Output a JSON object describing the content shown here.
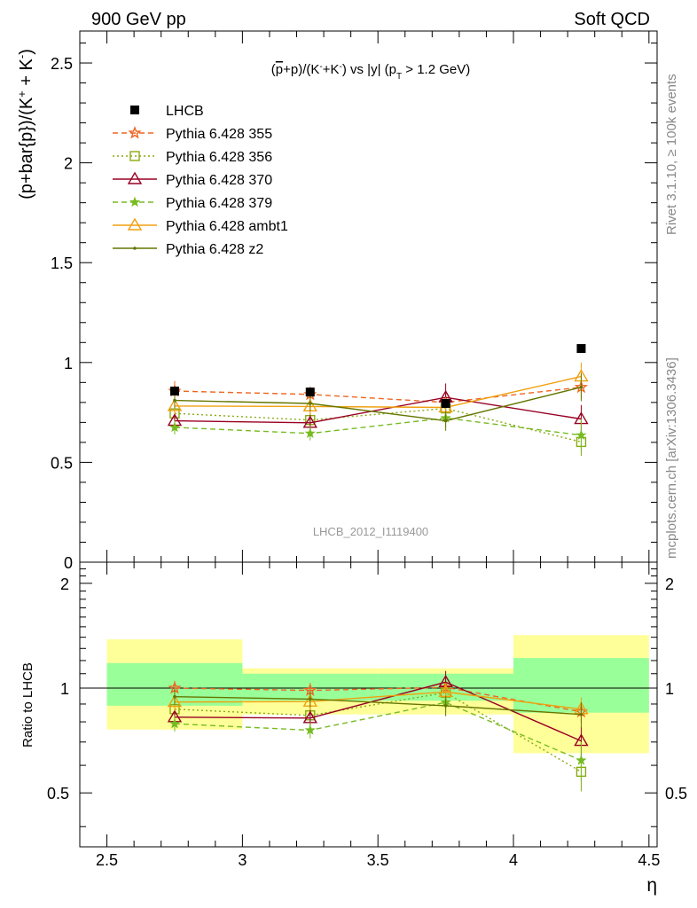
{
  "header": {
    "left": "900 GeV pp",
    "right": "Soft QCD"
  },
  "side_text": {
    "rivet": "Rivet 3.1.10, ≥ 100k events",
    "mcplots": "mcplots.cern.ch [arXiv:1306.3436]"
  },
  "chart_data": [
    {
      "type": "scatter",
      "title": "(p̄+p)/(K⁻+K⁻) vs |y| (p_T > 1.2 GeV)",
      "title_parts": [
        "(",
        "p",
        "+p)/(K",
        "-",
        "+K",
        "-",
        ") vs |y| (p",
        "T",
        " > 1.2 GeV)"
      ],
      "ylabel": "(p+bar{p})/(K⁺ + K⁻)",
      "ylabel_parts": [
        "(p+bar{p})/(K",
        "+",
        " + K",
        "-",
        ")"
      ],
      "watermark": "LHCB_2012_I1119400",
      "xlim": [
        2.4,
        4.53
      ],
      "ylim": [
        0,
        2.66
      ],
      "y_ticks": [
        "0",
        "0.5",
        "1",
        "1.5",
        "2",
        "2.5"
      ],
      "y_tick_values": [
        0,
        0.5,
        1,
        1.5,
        2,
        2.5
      ],
      "legend_position": "top-left",
      "x": [
        2.75,
        3.25,
        3.75,
        4.25
      ],
      "bin_edges": [
        2.5,
        3.0,
        3.5,
        4.0,
        4.5
      ],
      "data": {
        "name": "LHCB",
        "color": "#000000",
        "values": [
          0.857,
          0.852,
          0.795,
          1.07
        ]
      },
      "series": [
        {
          "name": "Pythia 6.428 355",
          "color": "#ee6622",
          "style": "dashed",
          "marker": "star-open",
          "values": [
            0.857,
            0.84,
            0.8,
            0.876
          ],
          "err": [
            0.05,
            0.04,
            0.05,
            0.06
          ]
        },
        {
          "name": "Pythia 6.428 356",
          "color": "#88aa11",
          "style": "dotted",
          "marker": "square-open",
          "values": [
            0.745,
            0.712,
            0.77,
            0.602
          ],
          "err": [
            0.04,
            0.04,
            0.05,
            0.07
          ]
        },
        {
          "name": "Pythia 6.428 370",
          "color": "#990022",
          "style": "solid",
          "marker": "triangle-open",
          "values": [
            0.708,
            0.698,
            0.825,
            0.717
          ],
          "err": [
            0.04,
            0.04,
            0.07,
            0.07
          ]
        },
        {
          "name": "Pythia 6.428 379",
          "color": "#77bb22",
          "style": "dashed",
          "marker": "star",
          "values": [
            0.675,
            0.645,
            0.722,
            0.636
          ],
          "err": [
            0.035,
            0.035,
            0.05,
            0.08
          ]
        },
        {
          "name": "Pythia 6.428 ambt1",
          "color": "#f0a010",
          "style": "solid",
          "marker": "triangle-open",
          "values": [
            0.782,
            0.78,
            0.775,
            0.93
          ],
          "err": [
            0.04,
            0.04,
            0.05,
            0.07
          ]
        },
        {
          "name": "Pythia 6.428 z2",
          "color": "#667700",
          "style": "solid",
          "marker": "dot",
          "values": [
            0.81,
            0.795,
            0.708,
            0.876
          ],
          "err": [
            0.04,
            0.04,
            0.05,
            0.07
          ]
        }
      ]
    },
    {
      "type": "scatter",
      "title": "",
      "ylabel": "Ratio to LHCB",
      "xlabel": "η",
      "xlim": [
        2.4,
        4.53
      ],
      "ylim": [
        0.35,
        2.3
      ],
      "x_ticks": [
        "2.5",
        "3",
        "3.5",
        "4",
        "4.5"
      ],
      "x_tick_values": [
        2.5,
        3.0,
        3.5,
        4.0,
        4.5
      ],
      "y_ticks": [
        "0.5",
        "1",
        "2"
      ],
      "y_tick_values": [
        0.5,
        1,
        2
      ],
      "y_scale": "log",
      "x": [
        2.75,
        3.25,
        3.75,
        4.25
      ],
      "bin_edges": [
        2.5,
        3.0,
        3.5,
        4.0,
        4.5
      ],
      "bands": {
        "yellow": [
          [
            0.76,
            1.38
          ],
          [
            0.84,
            1.14
          ],
          [
            0.84,
            1.14
          ],
          [
            0.65,
            1.42
          ]
        ],
        "green": [
          [
            0.89,
            1.18
          ],
          [
            0.92,
            1.1
          ],
          [
            0.92,
            1.1
          ],
          [
            0.85,
            1.22
          ]
        ]
      },
      "series_ratios": [
        [
          1.0,
          0.985,
          1.005,
          0.855
        ],
        [
          0.87,
          0.835,
          0.97,
          0.575
        ],
        [
          0.825,
          0.82,
          1.04,
          0.705
        ],
        [
          0.79,
          0.757,
          0.91,
          0.62
        ],
        [
          0.912,
          0.915,
          0.975,
          0.87
        ],
        [
          0.945,
          0.93,
          0.89,
          0.84
        ]
      ],
      "series_ratio_err": [
        [
          0.05,
          0.05,
          0.06,
          0.06
        ],
        [
          0.05,
          0.05,
          0.06,
          0.07
        ],
        [
          0.05,
          0.05,
          0.08,
          0.07
        ],
        [
          0.04,
          0.04,
          0.06,
          0.08
        ],
        [
          0.05,
          0.05,
          0.06,
          0.07
        ],
        [
          0.05,
          0.05,
          0.06,
          0.07
        ]
      ]
    }
  ]
}
